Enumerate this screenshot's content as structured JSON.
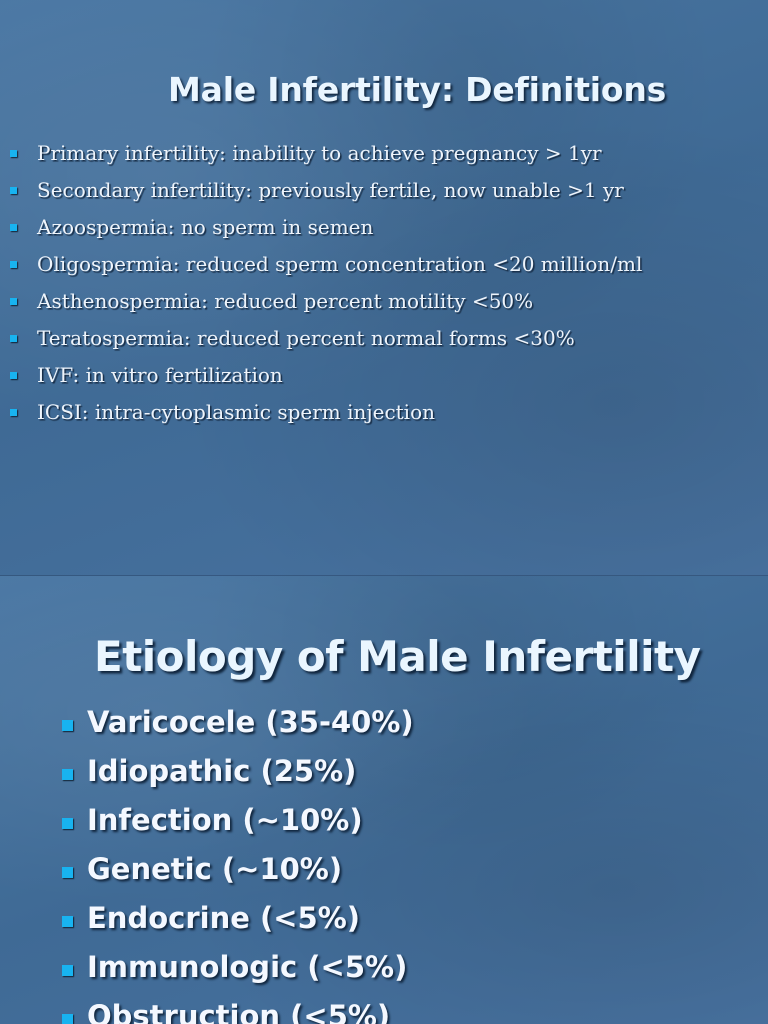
{
  "slide1": {
    "title": "Male Infertility: Definitions",
    "items": [
      "Primary infertility: inability to achieve pregnancy > 1yr",
      "Secondary infertility: previously fertile, now unable >1 yr",
      "Azoospermia: no sperm in semen",
      "Oligospermia: reduced sperm concentration <20 million/ml",
      "Asthenospermia: reduced percent motility <50%",
      "Teratospermia: reduced percent normal forms <30%",
      "IVF: in vitro fertilization",
      "ICSI: intra-cytoplasmic sperm injection"
    ]
  },
  "slide2": {
    "title": "Etiology of Male Infertility",
    "items": [
      "Varicocele (35-40%)",
      "Idiopathic (25%)",
      "Infection (~10%)",
      "Genetic (~10%)",
      "Endocrine (<5%)",
      "Immunologic (<5%)",
      "Obstruction (<5%)"
    ]
  },
  "colors": {
    "background": "#44709b",
    "title_text": "#eaf6ff",
    "body_text": "#eef4fb",
    "bullet": "#18b3f0"
  }
}
